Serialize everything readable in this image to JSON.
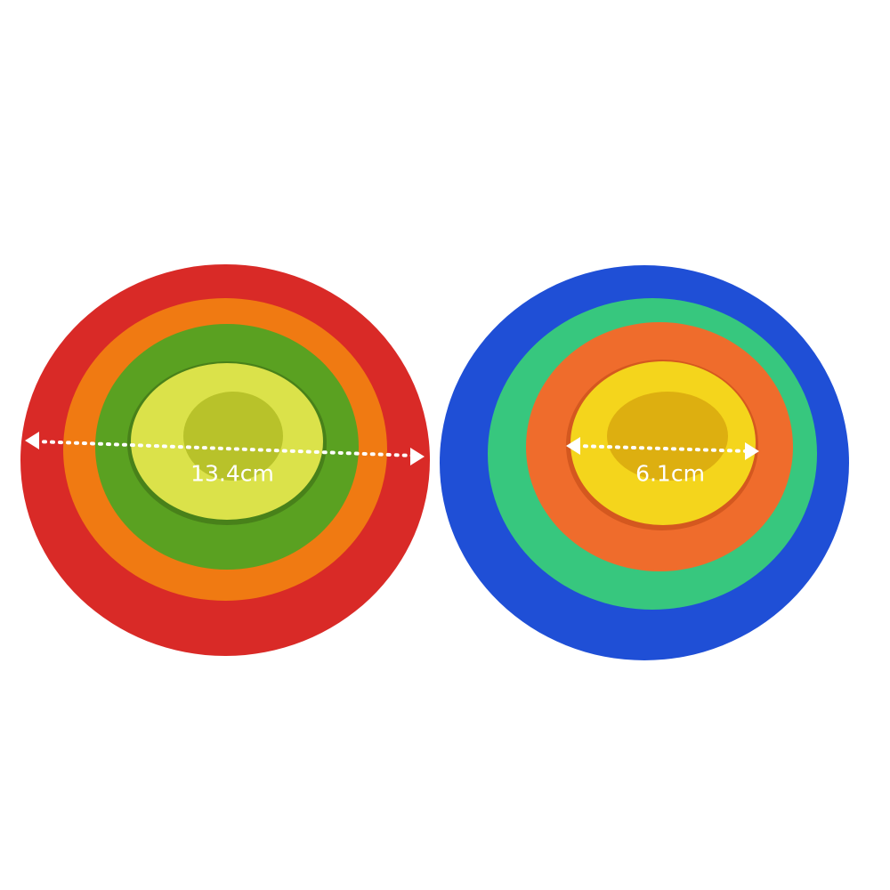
{
  "measurements": {
    "large": "13.4cm",
    "small": "6.1cm"
  },
  "colors": {
    "red": "#e0312c",
    "orange": "#f07a12",
    "green": "#5aa121",
    "lime": "#dbe24a",
    "blue": "#1f4fd6",
    "mint": "#37c77e",
    "orange2": "#ef6c2c",
    "yellow": "#f4d51c"
  }
}
